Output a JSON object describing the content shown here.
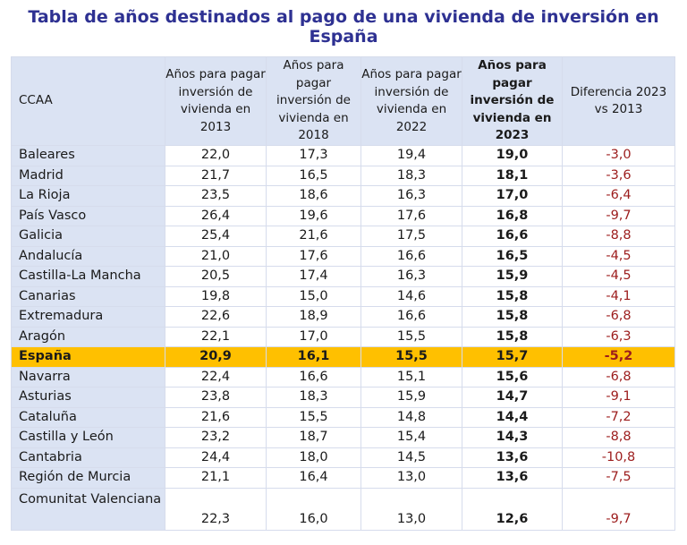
{
  "title": "Tabla de años destinados al pago de una vivienda de inversión en España",
  "columns": [
    "CCAA",
    "Años para pagar inversión de vivienda en 2013",
    "Años para pagar inversión de vivienda en 2018",
    "Años para pagar inversión de vivienda en 2022",
    "Años para pagar inversión de vivienda en 2023",
    "Diferencia 2023 vs 2013"
  ],
  "rows": [
    [
      "Baleares",
      "22,0",
      "17,3",
      "19,4",
      "19,0",
      "-3,0"
    ],
    [
      "Madrid",
      "21,7",
      "16,5",
      "18,3",
      "18,1",
      "-3,6"
    ],
    [
      "La Rioja",
      "23,5",
      "18,6",
      "16,3",
      "17,0",
      "-6,4"
    ],
    [
      "País Vasco",
      "26,4",
      "19,6",
      "17,6",
      "16,8",
      "-9,7"
    ],
    [
      "Galicia",
      "25,4",
      "21,6",
      "17,5",
      "16,6",
      "-8,8"
    ],
    [
      "Andalucía",
      "21,0",
      "17,6",
      "16,6",
      "16,5",
      "-4,5"
    ],
    [
      "Castilla-La Mancha",
      "20,5",
      "17,4",
      "16,3",
      "15,9",
      "-4,5"
    ],
    [
      "Canarias",
      "19,8",
      "15,0",
      "14,6",
      "15,8",
      "-4,1"
    ],
    [
      "Extremadura",
      "22,6",
      "18,9",
      "16,6",
      "15,8",
      "-6,8"
    ],
    [
      "Aragón",
      "22,1",
      "17,0",
      "15,5",
      "15,8",
      "-6,3"
    ],
    [
      "España",
      "20,9",
      "16,1",
      "15,5",
      "15,7",
      "-5,2"
    ],
    [
      "Navarra",
      "22,4",
      "16,6",
      "15,1",
      "15,6",
      "-6,8"
    ],
    [
      "Asturias",
      "23,8",
      "18,3",
      "15,9",
      "14,7",
      "-9,1"
    ],
    [
      "Cataluña",
      "21,6",
      "15,5",
      "14,8",
      "14,4",
      "-7,2"
    ],
    [
      "Castilla y León",
      "23,2",
      "18,7",
      "15,4",
      "14,3",
      "-8,8"
    ],
    [
      "Cantabria",
      "24,4",
      "18,0",
      "14,5",
      "13,6",
      "-10,8"
    ],
    [
      "Región de Murcia",
      "21,1",
      "16,4",
      "13,0",
      "13,6",
      "-7,5"
    ],
    [
      "Comunitat Valenciana",
      "22,3",
      "16,0",
      "13,0",
      "12,6",
      "-9,7"
    ]
  ],
  "highlight_row": "España",
  "colors": {
    "title": "#2e3192",
    "header_bg": "#dbe3f3",
    "highlight": "#ffc000",
    "negative": "#9c1c1c"
  }
}
